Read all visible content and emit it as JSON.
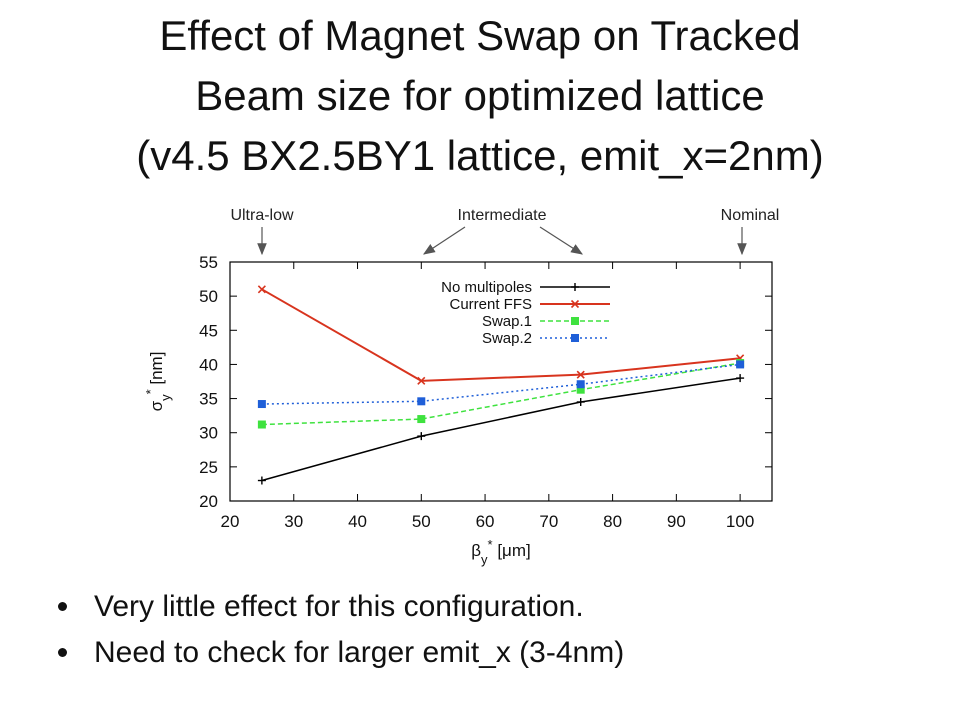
{
  "slide": {
    "title_lines": [
      "Effect of Magnet Swap on Tracked",
      "Beam size for optimized lattice",
      "(v4.5 BX2.5BY1 lattice, emit_x=2nm)"
    ],
    "bullets": [
      "Very little effect for this configuration.",
      "Need to check for larger emit_x (3-4nm)"
    ]
  },
  "annotations": {
    "ultra_low": "Ultra-low",
    "intermediate": "Intermediate",
    "nominal": "Nominal"
  },
  "chart_data": {
    "type": "line",
    "xlabel": "β_y* [μm]",
    "ylabel": "σ_y* [nm]",
    "xlim": [
      20,
      105
    ],
    "ylim": [
      20,
      55
    ],
    "x_ticks": [
      20,
      30,
      40,
      50,
      60,
      70,
      80,
      90,
      100
    ],
    "y_ticks": [
      20,
      25,
      30,
      35,
      40,
      45,
      50,
      55
    ],
    "grid": false,
    "legend_position": "top-center",
    "x": [
      25,
      50,
      75,
      100
    ],
    "series": [
      {
        "name": "No multipoles",
        "values": [
          23.0,
          29.5,
          34.5,
          38.0
        ],
        "color": "#000000",
        "marker": "plus",
        "dash": "solid"
      },
      {
        "name": "Current FFS",
        "values": [
          51.0,
          37.6,
          38.5,
          40.9
        ],
        "color": "#d8341e",
        "marker": "x",
        "dash": "solid"
      },
      {
        "name": "Swap.1",
        "values": [
          31.2,
          32.0,
          36.3,
          40.2
        ],
        "color": "#3fe23f",
        "marker": "square",
        "dash": "dashed"
      },
      {
        "name": "Swap.2",
        "values": [
          34.2,
          34.6,
          37.1,
          40.0
        ],
        "color": "#1f5fd8",
        "marker": "square",
        "dash": "dotted"
      }
    ]
  }
}
